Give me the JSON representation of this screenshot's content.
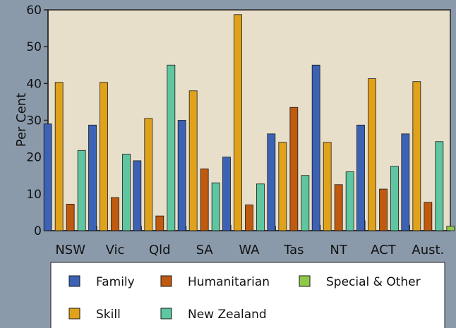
{
  "chart_data": {
    "type": "bar",
    "ylabel": "Per Cent",
    "ylim": [
      0,
      60
    ],
    "yticks": [
      0,
      10,
      20,
      30,
      40,
      50,
      60
    ],
    "categories": [
      "NSW",
      "Vic",
      "Qld",
      "SA",
      "WA",
      "Tas",
      "NT",
      "ACT",
      "Aust."
    ],
    "series": [
      {
        "name": "Family",
        "color": "#3b62b5",
        "values": [
          29,
          28.7,
          19,
          30,
          20,
          26.3,
          45,
          28.7,
          26.3
        ]
      },
      {
        "name": "Skill",
        "color": "#e0a21a",
        "values": [
          40.3,
          40.3,
          30.5,
          38,
          58.7,
          24,
          24,
          41.3,
          40.5
        ]
      },
      {
        "name": "Humanitarian",
        "color": "#c05a0e",
        "values": [
          7.2,
          9,
          4,
          16.8,
          7,
          33.5,
          12.5,
          11.3,
          7.7
        ]
      },
      {
        "name": "New Zealand",
        "color": "#5ec6a0",
        "values": [
          21.8,
          20.8,
          45,
          13,
          12.7,
          15,
          16,
          17.5,
          24.2
        ]
      },
      {
        "name": "Special & Other",
        "color": "#8fc94a",
        "values": [
          1.2,
          1.2,
          1.2,
          1.5,
          1.2,
          1.5,
          2.7,
          1.5,
          1.2
        ]
      }
    ],
    "legend_rows": [
      [
        "Family",
        "Humanitarian",
        "Special & Other"
      ],
      [
        "Skill",
        "New Zealand"
      ]
    ],
    "legend_placement": "bottom",
    "grid": false
  },
  "colors": {
    "frame": "#8a9aab",
    "plot_bg": "#e8dfcb",
    "legend_bg": "#ffffff",
    "special_label": "#3b4a6b"
  }
}
